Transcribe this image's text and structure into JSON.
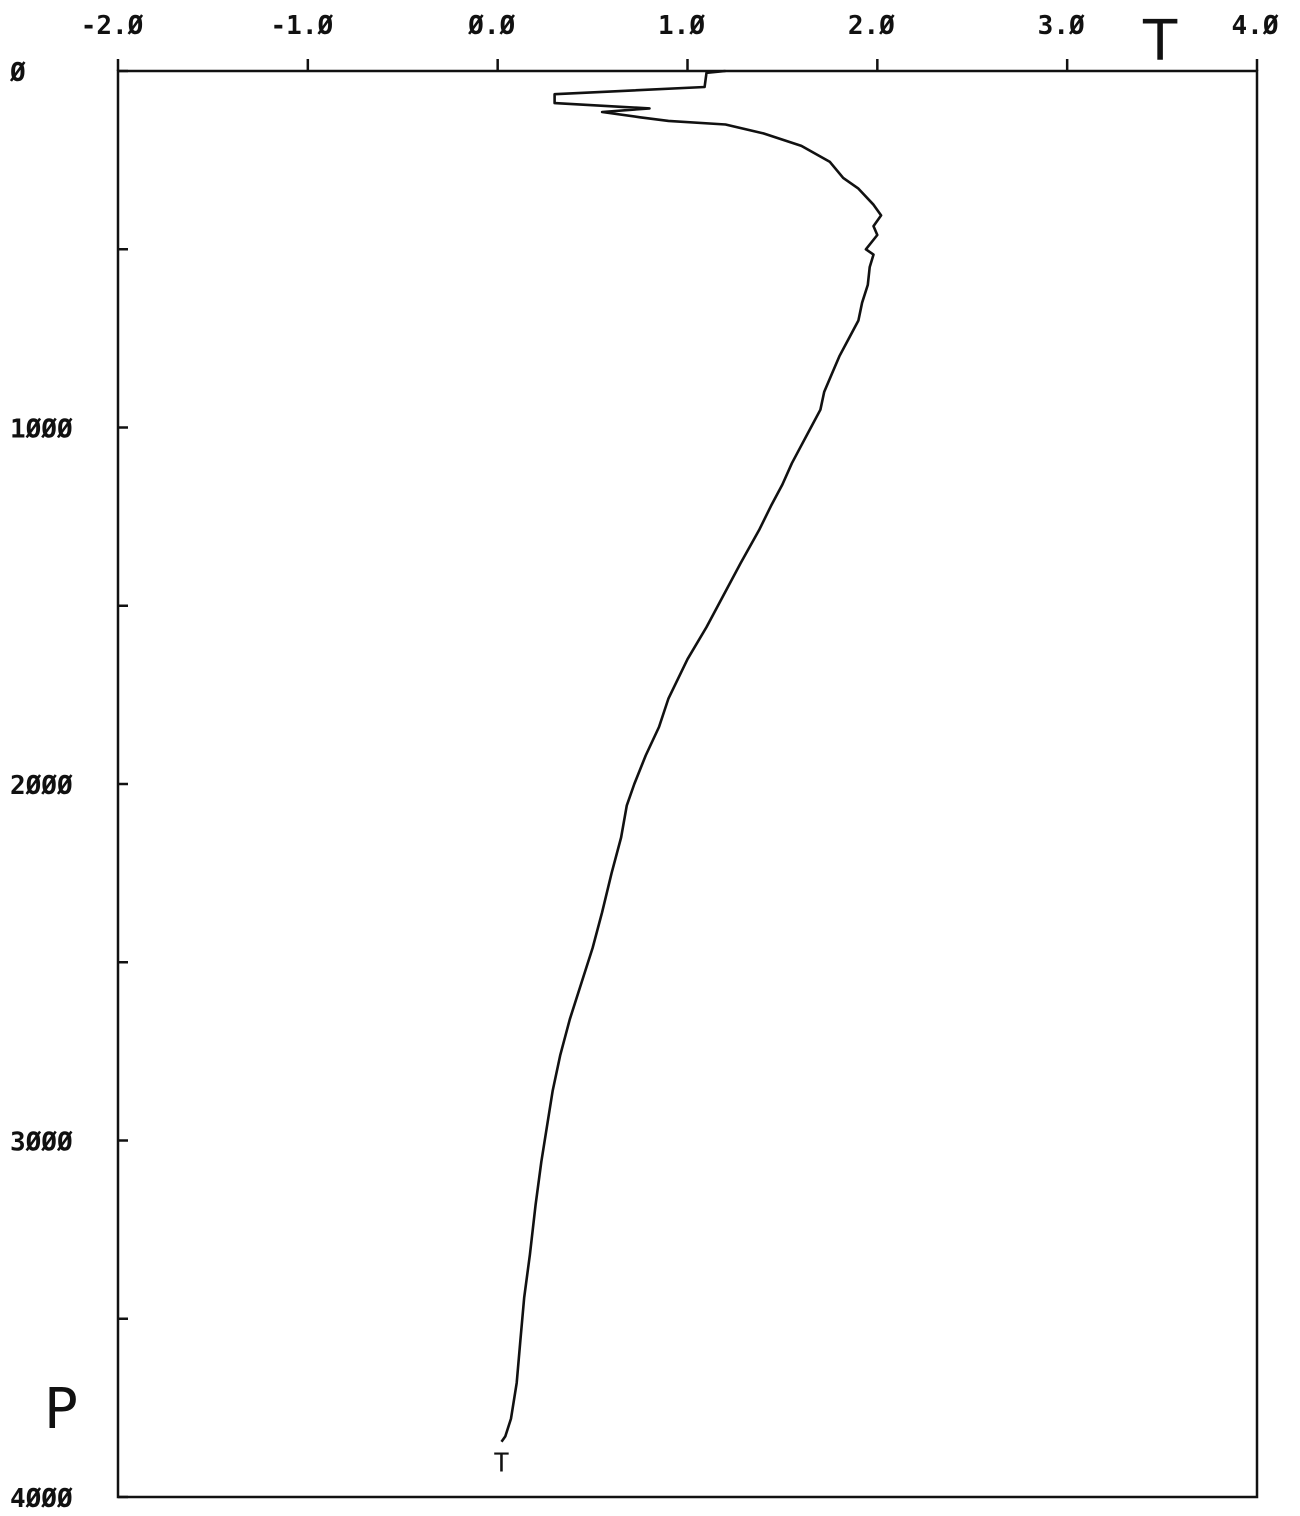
{
  "chart_data": {
    "type": "line",
    "title": "",
    "xlabel": "T",
    "ylabel": "P",
    "x_axis_position": "top",
    "y_axis_direction": "increasing-downward",
    "xlim": [
      -2.0,
      4.0
    ],
    "ylim": [
      0,
      4000
    ],
    "x_ticks": [
      -2.0,
      -1.0,
      0.0,
      1.0,
      2.0,
      3.0,
      4.0
    ],
    "x_tick_labels": [
      "-2.Ø",
      "-1.Ø",
      "Ø.Ø",
      "1.Ø",
      "2.Ø",
      "3.Ø",
      "4.Ø"
    ],
    "y_ticks": [
      0,
      500,
      1000,
      1500,
      2000,
      2500,
      3000,
      3500,
      4000
    ],
    "y_tick_labels": [
      "Ø",
      "",
      "1ØØØ",
      "",
      "2ØØØ",
      "",
      "3ØØØ",
      "",
      "4ØØØ"
    ],
    "grid": false,
    "series_end_label": "T",
    "line_color": "#111111",
    "series": [
      {
        "points": [
          [
            1.2,
            0
          ],
          [
            1.1,
            5
          ],
          [
            1.09,
            45
          ],
          [
            0.3,
            65
          ],
          [
            0.3,
            90
          ],
          [
            0.8,
            105
          ],
          [
            0.55,
            115
          ],
          [
            0.75,
            130
          ],
          [
            0.9,
            140
          ],
          [
            1.2,
            150
          ],
          [
            1.4,
            175
          ],
          [
            1.6,
            210
          ],
          [
            1.75,
            255
          ],
          [
            1.82,
            300
          ],
          [
            1.9,
            330
          ],
          [
            1.98,
            375
          ],
          [
            2.02,
            405
          ],
          [
            1.98,
            435
          ],
          [
            2.0,
            460
          ],
          [
            1.94,
            500
          ],
          [
            1.98,
            515
          ],
          [
            1.96,
            550
          ],
          [
            1.95,
            600
          ],
          [
            1.92,
            650
          ],
          [
            1.9,
            700
          ],
          [
            1.85,
            750
          ],
          [
            1.8,
            800
          ],
          [
            1.76,
            850
          ],
          [
            1.72,
            900
          ],
          [
            1.7,
            950
          ],
          [
            1.65,
            1000
          ],
          [
            1.6,
            1050
          ],
          [
            1.55,
            1100
          ],
          [
            1.5,
            1160
          ],
          [
            1.44,
            1220
          ],
          [
            1.38,
            1285
          ],
          [
            1.28,
            1380
          ],
          [
            1.18,
            1480
          ],
          [
            1.1,
            1560
          ],
          [
            1.0,
            1650
          ],
          [
            0.9,
            1760
          ],
          [
            0.85,
            1840
          ],
          [
            0.78,
            1920
          ],
          [
            0.72,
            2000
          ],
          [
            0.68,
            2060
          ],
          [
            0.65,
            2150
          ],
          [
            0.6,
            2250
          ],
          [
            0.55,
            2360
          ],
          [
            0.5,
            2460
          ],
          [
            0.44,
            2560
          ],
          [
            0.38,
            2660
          ],
          [
            0.33,
            2760
          ],
          [
            0.29,
            2860
          ],
          [
            0.26,
            2960
          ],
          [
            0.23,
            3060
          ],
          [
            0.2,
            3180
          ],
          [
            0.17,
            3320
          ],
          [
            0.14,
            3440
          ],
          [
            0.12,
            3560
          ],
          [
            0.1,
            3680
          ],
          [
            0.07,
            3780
          ],
          [
            0.04,
            3830
          ],
          [
            0.02,
            3845
          ]
        ]
      }
    ]
  }
}
